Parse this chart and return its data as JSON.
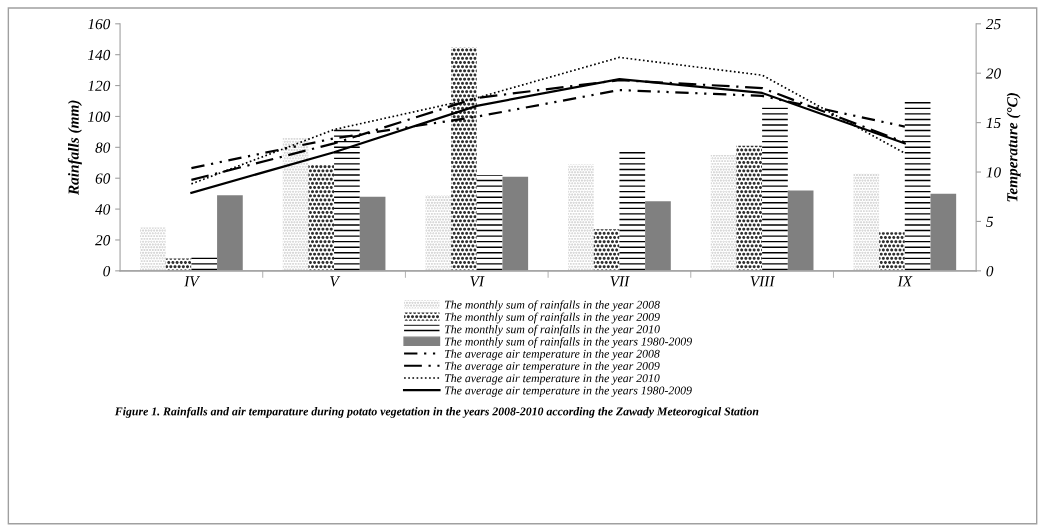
{
  "chart_data": {
    "type": "bar",
    "categories": [
      "IV",
      "V",
      "VI",
      "VII",
      "VIII",
      "IX"
    ],
    "ylabel": "Rainfalls (mm)",
    "y2label": "Temperature (°C)",
    "ylim": [
      0,
      160
    ],
    "yticks": [
      0,
      20,
      40,
      60,
      80,
      100,
      120,
      140,
      160
    ],
    "y2lim": [
      0,
      25
    ],
    "y2ticks": [
      0,
      5,
      10,
      15,
      20,
      25
    ],
    "legend": "bottom",
    "grid": false,
    "series": [
      {
        "name": "The monthly sum of rainfalls in the year 2008",
        "color": "#c8c8c8",
        "values": [
          28,
          86,
          49,
          69,
          75,
          63
        ]
      },
      {
        "name": "The monthly sum of rainfalls in the year 2009",
        "color": "#303030",
        "values": [
          8,
          69,
          145,
          27,
          81,
          25
        ]
      },
      {
        "name": "The monthly sum of rainfalls in the year 2010",
        "color": "#000000",
        "values": [
          10,
          93,
          62,
          77,
          106,
          110
        ]
      },
      {
        "name": "The monthly sum of rainfalls in the years 1980-2009",
        "color": "#808080",
        "values": [
          49,
          48,
          61,
          45,
          52,
          50
        ]
      },
      {
        "name": "The average air temperature in the year 2008",
        "type": "line",
        "axis": "y2",
        "color": "#000000",
        "line_style": "dashed",
        "values": [
          10.4,
          13.4,
          15.6,
          18.3,
          17.7,
          14.6
        ]
      },
      {
        "name": "The average air temperature in the year 2009",
        "type": "line",
        "axis": "y2",
        "color": "#000000",
        "line_style": "dashed",
        "values": [
          9.2,
          12.9,
          17.5,
          19.3,
          18.5,
          13.0
        ]
      },
      {
        "name": "The average air temperature in the year 2010",
        "type": "line",
        "axis": "y2",
        "color": "#000000",
        "line_style": "dotted",
        "values": [
          8.8,
          14.3,
          17.5,
          21.6,
          19.8,
          11.9
        ]
      },
      {
        "name": "The average air temperature in the years 1980-2009",
        "type": "line",
        "axis": "y2",
        "color": "#000000",
        "line_style": "solid",
        "values": [
          7.9,
          12.0,
          16.7,
          19.4,
          18.0,
          12.9
        ]
      }
    ],
    "annotations": [
      "Figure 1. Rainfalls and air temparature during potato vegetation in the years 2008-2010 according the Zawady Meteorogical Station"
    ]
  }
}
